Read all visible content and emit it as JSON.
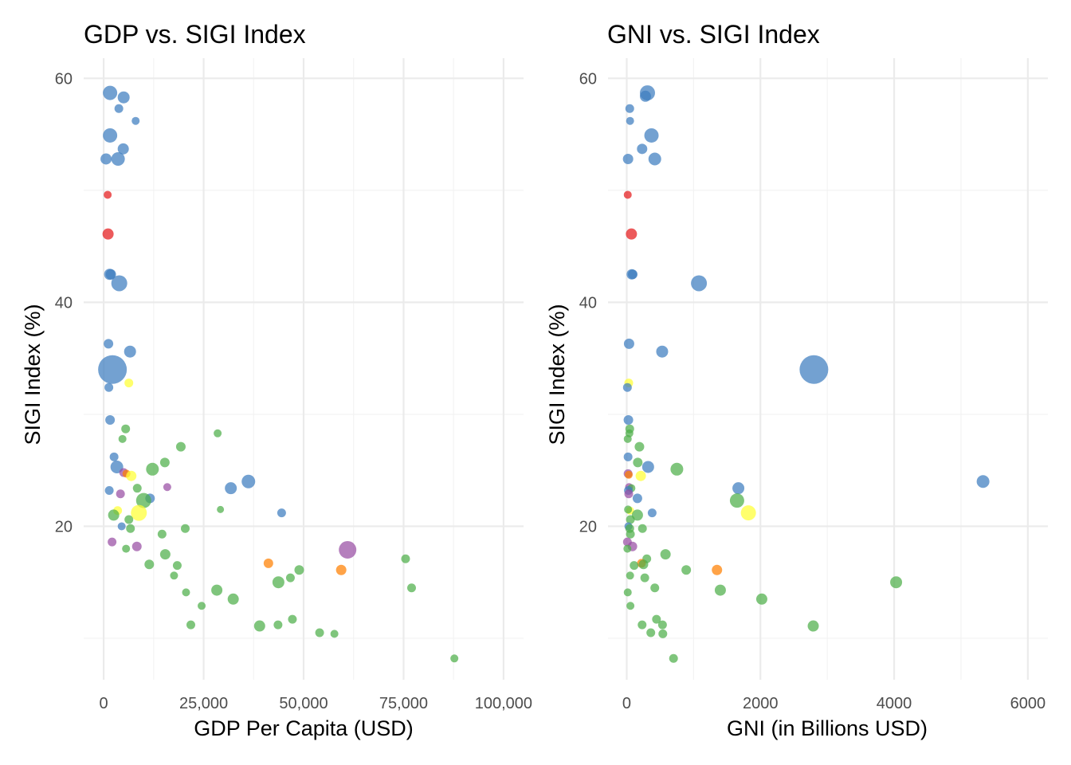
{
  "colors": {
    "blue": "#3d7dbf",
    "red": "#e41a1c",
    "green": "#4daf4a",
    "purple": "#984ea3",
    "orange": "#ff7f00",
    "yellow": "#ffff33"
  },
  "chart_data": [
    {
      "type": "scatter",
      "title": "GDP vs. SIGI Index",
      "xlabel": "GDP Per Capita (USD)",
      "ylabel": "SIGI Index (%)",
      "xlim": [
        -5000,
        105000
      ],
      "ylim": [
        6.3,
        61.8
      ],
      "x_ticks": [
        0,
        25000,
        50000,
        75000,
        100000
      ],
      "x_tick_labels": [
        "0",
        "25,000",
        "50,000",
        "75,000",
        "100,000"
      ],
      "y_ticks": [
        20,
        40,
        60
      ],
      "y_tick_labels": [
        "20",
        "40",
        "60"
      ],
      "grid": true,
      "points": [
        {
          "x": 1600,
          "y": 58.7,
          "size": 9,
          "color": "blue"
        },
        {
          "x": 5000,
          "y": 58.3,
          "size": 7.5,
          "color": "blue"
        },
        {
          "x": 3800,
          "y": 57.3,
          "size": 5.5,
          "color": "blue"
        },
        {
          "x": 8000,
          "y": 56.2,
          "size": 5,
          "color": "blue"
        },
        {
          "x": 1600,
          "y": 54.9,
          "size": 9,
          "color": "blue"
        },
        {
          "x": 4900,
          "y": 53.7,
          "size": 7,
          "color": "blue"
        },
        {
          "x": 600,
          "y": 52.8,
          "size": 7,
          "color": "blue"
        },
        {
          "x": 3600,
          "y": 52.8,
          "size": 8.5,
          "color": "blue"
        },
        {
          "x": 1000,
          "y": 49.6,
          "size": 5,
          "color": "red"
        },
        {
          "x": 1100,
          "y": 46.1,
          "size": 7,
          "color": "red"
        },
        {
          "x": 1500,
          "y": 42.5,
          "size": 7,
          "color": "blue"
        },
        {
          "x": 1800,
          "y": 42.5,
          "size": 6.5,
          "color": "blue"
        },
        {
          "x": 3900,
          "y": 41.7,
          "size": 10,
          "color": "blue"
        },
        {
          "x": 1200,
          "y": 36.3,
          "size": 6,
          "color": "blue"
        },
        {
          "x": 6600,
          "y": 35.6,
          "size": 7.5,
          "color": "blue"
        },
        {
          "x": 2200,
          "y": 34.0,
          "size": 18,
          "color": "blue"
        },
        {
          "x": 6300,
          "y": 32.8,
          "size": 5.5,
          "color": "yellow"
        },
        {
          "x": 1300,
          "y": 32.4,
          "size": 5.5,
          "color": "blue"
        },
        {
          "x": 1600,
          "y": 29.5,
          "size": 6,
          "color": "blue"
        },
        {
          "x": 5500,
          "y": 28.7,
          "size": 5.5,
          "color": "green"
        },
        {
          "x": 28500,
          "y": 28.3,
          "size": 5,
          "color": "green"
        },
        {
          "x": 4700,
          "y": 27.8,
          "size": 5,
          "color": "green"
        },
        {
          "x": 19300,
          "y": 27.1,
          "size": 6,
          "color": "green"
        },
        {
          "x": 2600,
          "y": 26.2,
          "size": 5.5,
          "color": "blue"
        },
        {
          "x": 15300,
          "y": 25.7,
          "size": 6,
          "color": "green"
        },
        {
          "x": 3300,
          "y": 25.3,
          "size": 8,
          "color": "blue"
        },
        {
          "x": 12200,
          "y": 25.1,
          "size": 8,
          "color": "green"
        },
        {
          "x": 5000,
          "y": 24.8,
          "size": 5.5,
          "color": "purple"
        },
        {
          "x": 5700,
          "y": 24.7,
          "size": 5,
          "color": "orange"
        },
        {
          "x": 6900,
          "y": 24.5,
          "size": 6.5,
          "color": "yellow"
        },
        {
          "x": 36200,
          "y": 24.0,
          "size": 8.5,
          "color": "blue"
        },
        {
          "x": 15900,
          "y": 23.5,
          "size": 5,
          "color": "purple"
        },
        {
          "x": 31800,
          "y": 23.4,
          "size": 7.5,
          "color": "blue"
        },
        {
          "x": 8400,
          "y": 23.4,
          "size": 5.5,
          "color": "green"
        },
        {
          "x": 1400,
          "y": 23.2,
          "size": 5.5,
          "color": "blue"
        },
        {
          "x": 4200,
          "y": 22.9,
          "size": 5.5,
          "color": "purple"
        },
        {
          "x": 11600,
          "y": 22.5,
          "size": 6,
          "color": "blue"
        },
        {
          "x": 10000,
          "y": 22.3,
          "size": 9.5,
          "color": "green"
        },
        {
          "x": 3500,
          "y": 21.4,
          "size": 5.5,
          "color": "yellow"
        },
        {
          "x": 29200,
          "y": 21.5,
          "size": 4.5,
          "color": "green"
        },
        {
          "x": 44500,
          "y": 21.2,
          "size": 5.5,
          "color": "blue"
        },
        {
          "x": 8800,
          "y": 21.2,
          "size": 10,
          "color": "yellow"
        },
        {
          "x": 2500,
          "y": 21.0,
          "size": 7,
          "color": "green"
        },
        {
          "x": 6300,
          "y": 20.6,
          "size": 5.5,
          "color": "green"
        },
        {
          "x": 4500,
          "y": 20.0,
          "size": 5,
          "color": "blue"
        },
        {
          "x": 20400,
          "y": 19.8,
          "size": 5.5,
          "color": "green"
        },
        {
          "x": 6700,
          "y": 19.8,
          "size": 5.5,
          "color": "green"
        },
        {
          "x": 14600,
          "y": 19.3,
          "size": 5.5,
          "color": "green"
        },
        {
          "x": 2100,
          "y": 18.6,
          "size": 5.5,
          "color": "purple"
        },
        {
          "x": 8300,
          "y": 18.2,
          "size": 6,
          "color": "purple"
        },
        {
          "x": 5600,
          "y": 18.0,
          "size": 5,
          "color": "green"
        },
        {
          "x": 61000,
          "y": 17.9,
          "size": 11,
          "color": "purple"
        },
        {
          "x": 15400,
          "y": 17.5,
          "size": 6.5,
          "color": "green"
        },
        {
          "x": 75500,
          "y": 17.1,
          "size": 5.5,
          "color": "green"
        },
        {
          "x": 41200,
          "y": 16.7,
          "size": 6,
          "color": "orange"
        },
        {
          "x": 11400,
          "y": 16.6,
          "size": 6,
          "color": "green"
        },
        {
          "x": 18400,
          "y": 16.5,
          "size": 5.5,
          "color": "green"
        },
        {
          "x": 59400,
          "y": 16.1,
          "size": 6.5,
          "color": "orange"
        },
        {
          "x": 48900,
          "y": 16.1,
          "size": 6,
          "color": "green"
        },
        {
          "x": 17600,
          "y": 15.6,
          "size": 5,
          "color": "green"
        },
        {
          "x": 46700,
          "y": 15.4,
          "size": 5.5,
          "color": "green"
        },
        {
          "x": 43700,
          "y": 15.0,
          "size": 7.5,
          "color": "green"
        },
        {
          "x": 77000,
          "y": 14.5,
          "size": 5.5,
          "color": "green"
        },
        {
          "x": 28300,
          "y": 14.3,
          "size": 7,
          "color": "green"
        },
        {
          "x": 20600,
          "y": 14.1,
          "size": 5,
          "color": "green"
        },
        {
          "x": 32400,
          "y": 13.5,
          "size": 7,
          "color": "green"
        },
        {
          "x": 24500,
          "y": 12.9,
          "size": 5,
          "color": "green"
        },
        {
          "x": 47200,
          "y": 11.7,
          "size": 5.5,
          "color": "green"
        },
        {
          "x": 21800,
          "y": 11.2,
          "size": 5.5,
          "color": "green"
        },
        {
          "x": 43600,
          "y": 11.2,
          "size": 5.5,
          "color": "green"
        },
        {
          "x": 39000,
          "y": 11.1,
          "size": 7,
          "color": "green"
        },
        {
          "x": 54000,
          "y": 10.5,
          "size": 5.5,
          "color": "green"
        },
        {
          "x": 57700,
          "y": 10.4,
          "size": 5,
          "color": "green"
        },
        {
          "x": 87700,
          "y": 8.2,
          "size": 5,
          "color": "green"
        }
      ]
    },
    {
      "type": "scatter",
      "title": "GNI vs. SIGI Index",
      "xlabel": "GNI (in Billions USD)",
      "ylabel": "SIGI Index (%)",
      "xlim": [
        -280,
        6300
      ],
      "ylim": [
        6.3,
        61.8
      ],
      "x_ticks": [
        0,
        2000,
        4000,
        6000
      ],
      "x_tick_labels": [
        "0",
        "2000",
        "4000",
        "6000"
      ],
      "y_ticks": [
        20,
        40,
        60
      ],
      "y_tick_labels": [
        "20",
        "40",
        "60"
      ],
      "grid": true,
      "points": [
        {
          "x": 310,
          "y": 58.7,
          "size": 9.5,
          "color": "blue"
        },
        {
          "x": 280,
          "y": 58.4,
          "size": 7,
          "color": "blue"
        },
        {
          "x": 45,
          "y": 57.3,
          "size": 5.5,
          "color": "blue"
        },
        {
          "x": 50,
          "y": 56.2,
          "size": 5,
          "color": "blue"
        },
        {
          "x": 370,
          "y": 54.9,
          "size": 9,
          "color": "blue"
        },
        {
          "x": 230,
          "y": 53.7,
          "size": 6.5,
          "color": "blue"
        },
        {
          "x": 420,
          "y": 52.8,
          "size": 8,
          "color": "blue"
        },
        {
          "x": 20,
          "y": 52.8,
          "size": 6.5,
          "color": "blue"
        },
        {
          "x": 15,
          "y": 49.6,
          "size": 5,
          "color": "red"
        },
        {
          "x": 70,
          "y": 46.1,
          "size": 7,
          "color": "red"
        },
        {
          "x": 75,
          "y": 42.5,
          "size": 6.5,
          "color": "blue"
        },
        {
          "x": 90,
          "y": 42.5,
          "size": 6,
          "color": "blue"
        },
        {
          "x": 1080,
          "y": 41.7,
          "size": 10,
          "color": "blue"
        },
        {
          "x": 35,
          "y": 36.3,
          "size": 6.5,
          "color": "blue"
        },
        {
          "x": 530,
          "y": 35.6,
          "size": 7.5,
          "color": "blue"
        },
        {
          "x": 2800,
          "y": 34.0,
          "size": 18,
          "color": "blue"
        },
        {
          "x": 30,
          "y": 32.8,
          "size": 5.5,
          "color": "yellow"
        },
        {
          "x": 10,
          "y": 32.4,
          "size": 5.5,
          "color": "blue"
        },
        {
          "x": 25,
          "y": 29.5,
          "size": 6,
          "color": "blue"
        },
        {
          "x": 45,
          "y": 28.7,
          "size": 5.5,
          "color": "green"
        },
        {
          "x": 40,
          "y": 28.3,
          "size": 5,
          "color": "green"
        },
        {
          "x": 15,
          "y": 27.8,
          "size": 5,
          "color": "green"
        },
        {
          "x": 190,
          "y": 27.1,
          "size": 6,
          "color": "green"
        },
        {
          "x": 20,
          "y": 26.2,
          "size": 5.5,
          "color": "blue"
        },
        {
          "x": 165,
          "y": 25.7,
          "size": 6,
          "color": "green"
        },
        {
          "x": 320,
          "y": 25.3,
          "size": 7.5,
          "color": "blue"
        },
        {
          "x": 750,
          "y": 25.1,
          "size": 8,
          "color": "green"
        },
        {
          "x": 20,
          "y": 24.7,
          "size": 5.5,
          "color": "purple"
        },
        {
          "x": 30,
          "y": 24.6,
          "size": 5,
          "color": "orange"
        },
        {
          "x": 210,
          "y": 24.5,
          "size": 6.5,
          "color": "yellow"
        },
        {
          "x": 5330,
          "y": 24.0,
          "size": 8,
          "color": "blue"
        },
        {
          "x": 35,
          "y": 23.5,
          "size": 5,
          "color": "purple"
        },
        {
          "x": 1670,
          "y": 23.4,
          "size": 7.5,
          "color": "blue"
        },
        {
          "x": 70,
          "y": 23.4,
          "size": 5,
          "color": "green"
        },
        {
          "x": 25,
          "y": 23.2,
          "size": 5.5,
          "color": "blue"
        },
        {
          "x": 30,
          "y": 22.9,
          "size": 5.5,
          "color": "purple"
        },
        {
          "x": 160,
          "y": 22.5,
          "size": 6,
          "color": "blue"
        },
        {
          "x": 1650,
          "y": 22.3,
          "size": 9,
          "color": "green"
        },
        {
          "x": 50,
          "y": 21.4,
          "size": 5,
          "color": "yellow"
        },
        {
          "x": 20,
          "y": 21.5,
          "size": 5,
          "color": "green"
        },
        {
          "x": 380,
          "y": 21.2,
          "size": 5.5,
          "color": "blue"
        },
        {
          "x": 1820,
          "y": 21.2,
          "size": 9.5,
          "color": "yellow"
        },
        {
          "x": 160,
          "y": 21.0,
          "size": 7,
          "color": "green"
        },
        {
          "x": 55,
          "y": 20.6,
          "size": 5.5,
          "color": "green"
        },
        {
          "x": 25,
          "y": 20.0,
          "size": 5,
          "color": "blue"
        },
        {
          "x": 235,
          "y": 19.8,
          "size": 5.5,
          "color": "green"
        },
        {
          "x": 45,
          "y": 19.8,
          "size": 5.5,
          "color": "green"
        },
        {
          "x": 55,
          "y": 19.3,
          "size": 5.5,
          "color": "green"
        },
        {
          "x": 10,
          "y": 18.6,
          "size": 5.5,
          "color": "purple"
        },
        {
          "x": 85,
          "y": 18.2,
          "size": 6,
          "color": "purple"
        },
        {
          "x": 10,
          "y": 18.0,
          "size": 5,
          "color": "green"
        },
        {
          "x": 580,
          "y": 17.5,
          "size": 6.5,
          "color": "green"
        },
        {
          "x": 300,
          "y": 17.1,
          "size": 5.5,
          "color": "green"
        },
        {
          "x": 220,
          "y": 16.7,
          "size": 5.5,
          "color": "orange"
        },
        {
          "x": 250,
          "y": 16.6,
          "size": 6,
          "color": "green"
        },
        {
          "x": 110,
          "y": 16.5,
          "size": 5.5,
          "color": "green"
        },
        {
          "x": 1350,
          "y": 16.1,
          "size": 6.5,
          "color": "orange"
        },
        {
          "x": 890,
          "y": 16.1,
          "size": 6,
          "color": "green"
        },
        {
          "x": 50,
          "y": 15.6,
          "size": 5,
          "color": "green"
        },
        {
          "x": 270,
          "y": 15.4,
          "size": 5.5,
          "color": "green"
        },
        {
          "x": 4030,
          "y": 15.0,
          "size": 7.5,
          "color": "green"
        },
        {
          "x": 420,
          "y": 14.5,
          "size": 5.5,
          "color": "green"
        },
        {
          "x": 1400,
          "y": 14.3,
          "size": 7,
          "color": "green"
        },
        {
          "x": 15,
          "y": 14.1,
          "size": 5,
          "color": "green"
        },
        {
          "x": 2020,
          "y": 13.5,
          "size": 7,
          "color": "green"
        },
        {
          "x": 55,
          "y": 12.9,
          "size": 5,
          "color": "green"
        },
        {
          "x": 445,
          "y": 11.7,
          "size": 5.5,
          "color": "green"
        },
        {
          "x": 230,
          "y": 11.2,
          "size": 5.5,
          "color": "green"
        },
        {
          "x": 535,
          "y": 11.2,
          "size": 5.5,
          "color": "green"
        },
        {
          "x": 2790,
          "y": 11.1,
          "size": 7,
          "color": "green"
        },
        {
          "x": 360,
          "y": 10.5,
          "size": 5.5,
          "color": "green"
        },
        {
          "x": 540,
          "y": 10.4,
          "size": 5.5,
          "color": "green"
        },
        {
          "x": 700,
          "y": 8.2,
          "size": 5.5,
          "color": "green"
        }
      ]
    }
  ]
}
